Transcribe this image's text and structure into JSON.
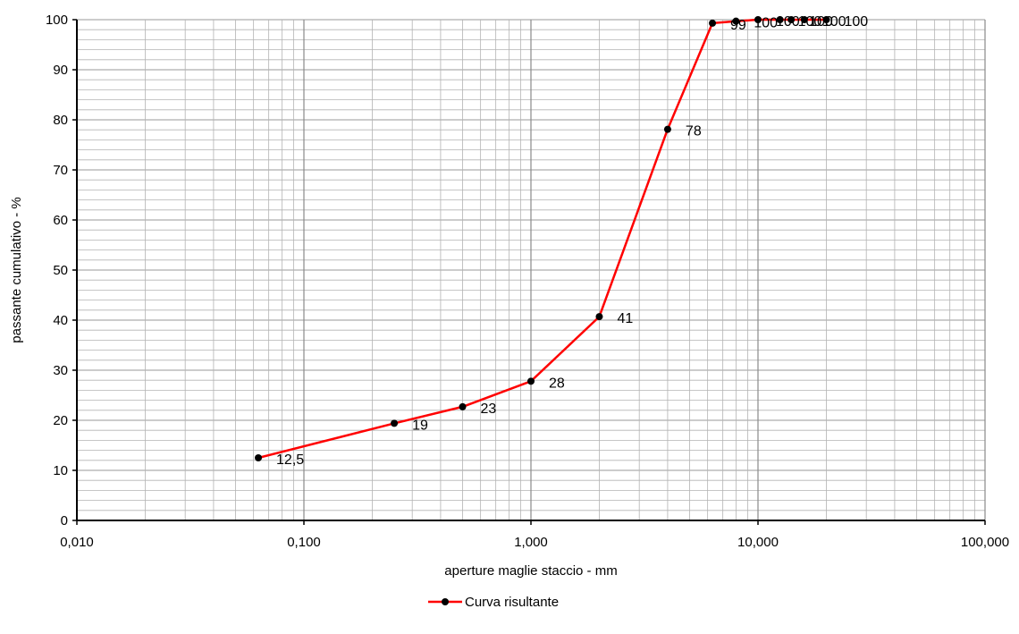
{
  "chart_data": {
    "type": "line",
    "title": "",
    "xlabel": "aperture maglie staccio - mm",
    "ylabel": "passante cumulativo - %",
    "x_scale": "log",
    "xlim": [
      0.01,
      100
    ],
    "ylim": [
      0,
      100
    ],
    "x_ticks": [
      0.01,
      0.1,
      1,
      10,
      100
    ],
    "x_tick_labels": [
      "0,010",
      "0,100",
      "1,000",
      "10,000",
      "100,000"
    ],
    "y_ticks": [
      0,
      10,
      20,
      30,
      40,
      50,
      60,
      70,
      80,
      90,
      100
    ],
    "y_tick_labels": [
      "0",
      "10",
      "20",
      "30",
      "40",
      "50",
      "60",
      "70",
      "80",
      "90",
      "100"
    ],
    "grid": true,
    "legend_position": "bottom-center",
    "series": [
      {
        "name": "Curva risultante",
        "color": "#ff0000",
        "marker_color": "#000000",
        "x": [
          0.063,
          0.25,
          0.5,
          1,
          2,
          4,
          6.3,
          8,
          10,
          12.5,
          14,
          16,
          20
        ],
        "y": [
          12.5,
          19.4,
          22.7,
          27.8,
          40.7,
          78.1,
          99.3,
          99.7,
          100,
          100,
          100,
          100,
          100
        ],
        "labels": [
          "12,5",
          "19",
          "23",
          "28",
          "41",
          "78",
          "99",
          "100",
          "100",
          "100",
          "100",
          "100",
          "100"
        ]
      }
    ]
  }
}
